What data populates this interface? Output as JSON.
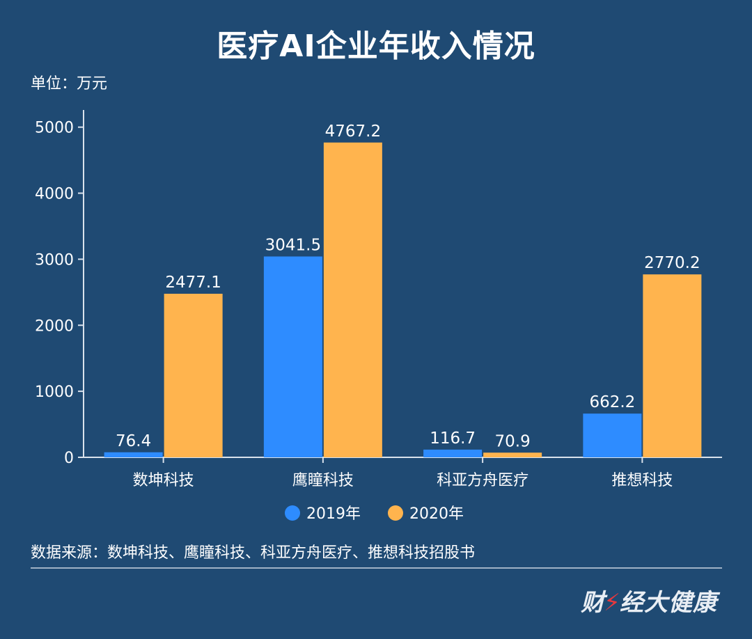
{
  "header": {
    "title": "医疗AI企业年收入情况",
    "unit": "单位：万元"
  },
  "chart_data": {
    "type": "bar",
    "categories": [
      "数坤科技",
      "鹰瞳科技",
      "科亚方舟医疗",
      "推想科技"
    ],
    "series": [
      {
        "name": "2019年",
        "values": [
          76.4,
          3041.5,
          116.7,
          662.2
        ],
        "color": "#2e8cff"
      },
      {
        "name": "2020年",
        "values": [
          2477.1,
          4767.2,
          70.9,
          2770.2
        ],
        "color": "#ffb44e"
      }
    ],
    "data_labels": [
      [
        "76.4",
        "3041.5",
        "116.7",
        "662.2"
      ],
      [
        "2477.1",
        "4767.2",
        "70.9",
        "2770.2"
      ]
    ],
    "yticks": [
      0,
      1000,
      2000,
      3000,
      4000,
      5000
    ],
    "ylim": [
      0,
      5260
    ],
    "legend_position": "bottom-center",
    "grid": false
  },
  "footer": {
    "source": "数据来源：数坤科技、鹰瞳科技、科亚方舟医疗、推想科技招股书",
    "brand_left": "财",
    "brand_right": "经大健康"
  }
}
